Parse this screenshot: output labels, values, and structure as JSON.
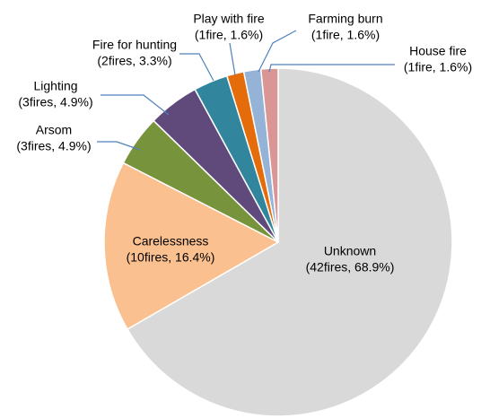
{
  "chart_data": {
    "type": "pie",
    "categories": [
      "Unknown",
      "Carelessness",
      "Arsom",
      "Lighting",
      "Fire for hunting",
      "Play with fire",
      "Farming burn",
      "House fire"
    ],
    "values": [
      42,
      10,
      3,
      3,
      2,
      1,
      1,
      1
    ],
    "value_labels": [
      "(42fires, 68.9%)",
      "(10fires, 16.4%)",
      "(3fires, 4.9%)",
      "(3fires, 4.9%)",
      "(2fires, 3.3%)",
      "(1fire, 1.6%)",
      "(1fire, 1.6%)",
      "(1fire, 1.6%)"
    ],
    "colors": [
      "#d9d9d9",
      "#fac090",
      "#77933c",
      "#604a7b",
      "#31859c",
      "#e46c0a",
      "#95b3d7",
      "#d99694"
    ]
  }
}
